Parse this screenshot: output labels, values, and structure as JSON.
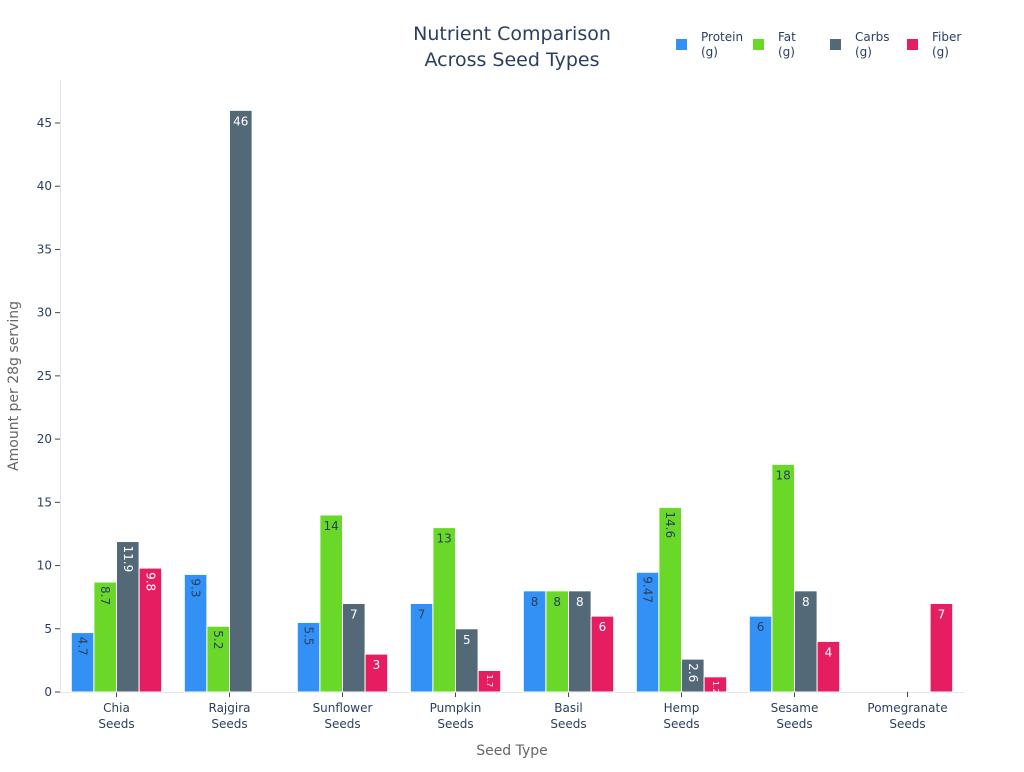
{
  "chart_data": {
    "type": "bar",
    "title": [
      "Nutrient Comparison",
      "Across Seed Types"
    ],
    "xlabel": "Seed Type",
    "ylabel": "Amount per 28g serving",
    "categories": [
      [
        "Chia",
        "Seeds"
      ],
      [
        "Rajgira",
        "Seeds"
      ],
      [
        "Sunflower",
        "Seeds"
      ],
      [
        "Pumpkin",
        "Seeds"
      ],
      [
        "Basil",
        "Seeds"
      ],
      [
        "Hemp",
        "Seeds"
      ],
      [
        "Sesame",
        "Seeds"
      ],
      [
        "Pomegranate",
        "Seeds"
      ]
    ],
    "yticks": [
      0,
      5,
      10,
      15,
      20,
      25,
      30,
      35,
      40,
      45
    ],
    "ylim": [
      0,
      48.4
    ],
    "grid": false,
    "legend_position": "top-right",
    "series": [
      {
        "name": [
          "Protein",
          "(g)"
        ],
        "color": "#3391f5",
        "label_color": "#2a3f5f",
        "values": [
          4.7,
          9.3,
          5.5,
          7,
          8,
          9.47,
          6,
          null
        ],
        "labels": [
          "4.7",
          "9.3",
          "5.5",
          "7",
          "8",
          "9.47",
          "6",
          ""
        ]
      },
      {
        "name": [
          "Fat",
          "(g)"
        ],
        "color": "#69d829",
        "label_color": "#2a3f5f",
        "values": [
          8.7,
          5.2,
          14,
          13,
          8,
          14.6,
          18,
          null
        ],
        "labels": [
          "8.7",
          "5.2",
          "14",
          "13",
          "8",
          "14.6",
          "18",
          ""
        ]
      },
      {
        "name": [
          "Carbs",
          "(g)"
        ],
        "color": "#546978",
        "label_color": "#ffffff",
        "values": [
          11.9,
          46,
          7,
          5,
          8,
          2.6,
          8,
          null
        ],
        "labels": [
          "11.9",
          "46",
          "7",
          "5",
          "8",
          "2.6",
          "8",
          ""
        ]
      },
      {
        "name": [
          "Fiber",
          "(g)"
        ],
        "color": "#e51e62",
        "label_color": "#ffffff",
        "values": [
          9.8,
          null,
          3,
          1.7,
          6,
          1.2,
          4,
          7
        ],
        "labels": [
          "9.8",
          "",
          "3",
          "1.7",
          "6",
          "1.2",
          "4",
          "7"
        ]
      }
    ]
  }
}
